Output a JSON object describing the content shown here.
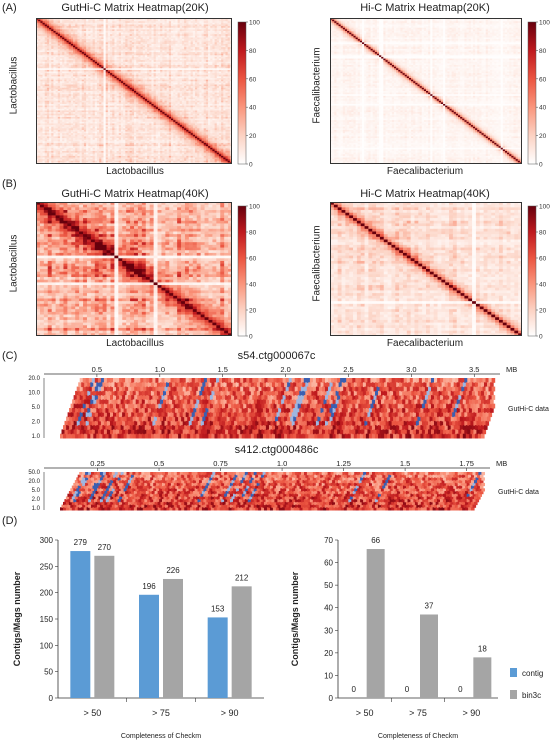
{
  "panels": {
    "A": "(A)",
    "B": "(B)",
    "C": "(C)",
    "D": "(D)"
  },
  "heatmaps": [
    {
      "id": "A1",
      "title": "GutHi-C Matrix Heatmap(20K)",
      "xlabel": "Lactobacillus",
      "ylabel": "Lactobacillus",
      "style": "guthic20"
    },
    {
      "id": "A2",
      "title": "Hi-C Matrix Heatmap(20K)",
      "xlabel": "Faecalibacterium",
      "ylabel": "Faecalibacterium",
      "style": "hic20"
    },
    {
      "id": "B1",
      "title": "GutHi-C Matrix Heatmap(40K)",
      "xlabel": "Lactobacillus",
      "ylabel": "Lactobacillus",
      "style": "guthic40"
    },
    {
      "id": "B2",
      "title": "Hi-C Matrix Heatmap(40K)",
      "xlabel": "Faecalibacterium",
      "ylabel": "Faecalibacterium",
      "style": "hic40"
    }
  ],
  "colorbar": {
    "ticks": [
      "100",
      "80",
      "60",
      "40",
      "20",
      "0"
    ],
    "min_color": "#ffffff",
    "max_color": "#67000d"
  },
  "tracks": [
    {
      "id": "t1",
      "title": "s54.ctg000067c",
      "ticks": [
        "0.5",
        "1.0",
        "1.5",
        "2.0",
        "2.5",
        "3.0",
        "3.5"
      ],
      "unit": "MB",
      "y_ticks": [
        "20.0",
        "10.0",
        "5.0",
        "2.0",
        "1.0"
      ],
      "label": "GutHi-C data"
    },
    {
      "id": "t2",
      "title": "s412.ctg000486c",
      "ticks": [
        "0.25",
        "0.5",
        "0.75",
        "1.0",
        "1.25",
        "1.5",
        "1.75"
      ],
      "unit": "MB",
      "y_ticks": [
        "50.0",
        "20.0",
        "5.0",
        "2.0",
        "1.0"
      ],
      "label": "GutHi-C data"
    }
  ],
  "chart_data": [
    {
      "type": "bar",
      "categories": [
        "> 50",
        "> 75",
        "> 90"
      ],
      "series": [
        {
          "name": "contig",
          "values": [
            279,
            196,
            153
          ],
          "color": "#5b9bd5"
        },
        {
          "name": "bin3c",
          "values": [
            270,
            226,
            212
          ],
          "color": "#a5a5a5"
        }
      ],
      "ylabel": "Contigs/Mags number",
      "xlabel": "Completeness of Checkm",
      "ylim": [
        0,
        300
      ],
      "yticks": [
        "0",
        "50",
        "100",
        "150",
        "200",
        "250",
        "300"
      ],
      "legend": "none",
      "grid": false
    },
    {
      "type": "bar",
      "categories": [
        "> 50",
        "> 75",
        "> 90"
      ],
      "series": [
        {
          "name": "contig",
          "values": [
            0,
            0,
            0
          ],
          "color": "#5b9bd5"
        },
        {
          "name": "bin3c",
          "values": [
            66,
            37,
            18
          ],
          "color": "#a5a5a5"
        }
      ],
      "ylabel": "Contigs/Mags number",
      "xlabel": "Completeness of Checkm",
      "ylim": [
        0,
        70
      ],
      "yticks": [
        "0",
        "10",
        "20",
        "30",
        "40",
        "50",
        "60",
        "70"
      ],
      "legend": "right",
      "grid": false
    }
  ]
}
